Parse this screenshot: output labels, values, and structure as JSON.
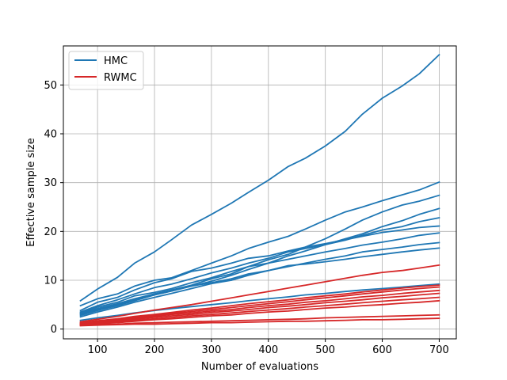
{
  "chart_data": {
    "type": "line",
    "title": "",
    "xlabel": "Number of evaluations",
    "ylabel": "Effective sample size",
    "xlim": [
      40,
      730
    ],
    "ylim": [
      -2,
      58
    ],
    "xticks": [
      100,
      200,
      300,
      400,
      500,
      600,
      700
    ],
    "yticks": [
      0,
      10,
      20,
      30,
      40,
      50
    ],
    "grid": true,
    "legend_position": "top-left",
    "legend": [
      {
        "label": "HMC",
        "color": "#1f77b4"
      },
      {
        "label": "RWMC",
        "color": "#d62728"
      }
    ],
    "x": [
      70,
      100,
      135,
      165,
      200,
      230,
      265,
      300,
      335,
      365,
      400,
      435,
      465,
      500,
      535,
      565,
      600,
      635,
      665,
      700
    ],
    "series": [
      {
        "group": "HMC",
        "color": "#1f77b4",
        "values": [
          5.8,
          8.2,
          10.6,
          13.5,
          15.8,
          18.3,
          21.3,
          23.5,
          25.8,
          28.0,
          30.5,
          33.3,
          35.0,
          37.5,
          40.5,
          44.0,
          47.3,
          49.8,
          52.3,
          56.2
        ]
      },
      {
        "group": "HMC",
        "color": "#1f77b4",
        "values": [
          4.8,
          6.2,
          7.2,
          8.8,
          10.0,
          10.5,
          12.0,
          13.5,
          15.0,
          16.5,
          17.8,
          19.0,
          20.5,
          22.3,
          24.0,
          25.0,
          26.3,
          27.5,
          28.5,
          30.1
        ]
      },
      {
        "group": "HMC",
        "color": "#1f77b4",
        "values": [
          3.2,
          4.2,
          5.2,
          6.2,
          7.2,
          8.0,
          9.0,
          10.3,
          11.3,
          12.8,
          14.2,
          15.3,
          16.8,
          18.5,
          20.5,
          22.3,
          24.0,
          25.4,
          26.2,
          27.4
        ]
      },
      {
        "group": "HMC",
        "color": "#1f77b4",
        "values": [
          3.0,
          4.0,
          5.0,
          6.0,
          7.0,
          7.8,
          8.8,
          9.8,
          11.0,
          12.2,
          13.5,
          15.0,
          16.0,
          17.3,
          18.5,
          19.5,
          21.0,
          22.2,
          23.5,
          24.7
        ]
      },
      {
        "group": "HMC",
        "color": "#1f77b4",
        "values": [
          3.5,
          4.8,
          6.0,
          7.2,
          8.5,
          9.2,
          10.3,
          11.5,
          12.5,
          13.5,
          14.5,
          15.8,
          16.5,
          17.3,
          18.2,
          19.2,
          20.3,
          21.0,
          22.0,
          22.8
        ]
      },
      {
        "group": "HMC",
        "color": "#1f77b4",
        "values": [
          3.8,
          5.5,
          6.5,
          8.0,
          9.5,
          10.3,
          11.8,
          12.5,
          13.5,
          14.5,
          15.0,
          16.0,
          16.8,
          17.5,
          18.3,
          19.0,
          19.8,
          20.3,
          20.8,
          21.1
        ]
      },
      {
        "group": "HMC",
        "color": "#1f77b4",
        "values": [
          3.3,
          4.5,
          5.5,
          6.8,
          7.5,
          8.3,
          9.5,
          10.5,
          11.8,
          12.8,
          13.5,
          14.3,
          15.0,
          15.8,
          16.5,
          17.2,
          17.8,
          18.5,
          19.2,
          19.7
        ]
      },
      {
        "group": "HMC",
        "color": "#1f77b4",
        "values": [
          2.5,
          3.5,
          4.5,
          5.5,
          6.5,
          7.3,
          8.3,
          9.3,
          10.0,
          11.0,
          12.0,
          12.8,
          13.5,
          14.3,
          15.0,
          15.8,
          16.3,
          16.8,
          17.3,
          17.7
        ]
      },
      {
        "group": "HMC",
        "color": "#1f77b4",
        "values": [
          2.8,
          3.8,
          4.8,
          5.8,
          7.0,
          7.8,
          8.8,
          9.5,
          10.3,
          11.3,
          12.0,
          13.0,
          13.3,
          13.8,
          14.3,
          14.8,
          15.3,
          15.8,
          16.2,
          16.6
        ]
      },
      {
        "group": "HMC",
        "color": "#1f77b4",
        "values": [
          1.8,
          2.3,
          2.8,
          3.3,
          3.8,
          4.2,
          4.6,
          5.0,
          5.4,
          5.8,
          6.2,
          6.6,
          7.0,
          7.3,
          7.7,
          8.0,
          8.3,
          8.6,
          8.9,
          9.2
        ]
      },
      {
        "group": "RWMC",
        "color": "#d62728",
        "values": [
          1.5,
          2.0,
          2.6,
          3.2,
          3.9,
          4.4,
          5.0,
          5.7,
          6.4,
          7.0,
          7.7,
          8.4,
          9.0,
          9.7,
          10.4,
          11.0,
          11.6,
          12.0,
          12.5,
          13.1
        ]
      },
      {
        "group": "RWMC",
        "color": "#d62728",
        "values": [
          1.3,
          1.7,
          2.1,
          2.6,
          3.0,
          3.4,
          3.9,
          4.3,
          4.8,
          5.2,
          5.6,
          6.0,
          6.4,
          6.8,
          7.2,
          7.6,
          8.0,
          8.4,
          8.7,
          9.0
        ]
      },
      {
        "group": "RWMC",
        "color": "#d62728",
        "values": [
          1.2,
          1.6,
          2.0,
          2.4,
          2.8,
          3.2,
          3.6,
          4.0,
          4.4,
          4.8,
          5.2,
          5.6,
          6.0,
          6.4,
          6.8,
          7.2,
          7.6,
          8.0,
          8.3,
          8.6
        ]
      },
      {
        "group": "RWMC",
        "color": "#d62728",
        "values": [
          1.1,
          1.5,
          1.9,
          2.2,
          2.6,
          3.0,
          3.3,
          3.7,
          4.0,
          4.4,
          4.8,
          5.1,
          5.5,
          5.8,
          6.2,
          6.6,
          6.9,
          7.3,
          7.6,
          7.9
        ]
      },
      {
        "group": "RWMC",
        "color": "#d62728",
        "values": [
          1.0,
          1.4,
          1.7,
          2.0,
          2.4,
          2.7,
          3.0,
          3.4,
          3.7,
          4.0,
          4.4,
          4.7,
          5.0,
          5.4,
          5.7,
          6.0,
          6.4,
          6.7,
          7.0,
          7.3
        ]
      },
      {
        "group": "RWMC",
        "color": "#d62728",
        "values": [
          0.9,
          1.2,
          1.5,
          1.8,
          2.1,
          2.4,
          2.7,
          3.0,
          3.3,
          3.6,
          3.9,
          4.2,
          4.5,
          4.8,
          5.1,
          5.4,
          5.7,
          6.0,
          6.2,
          6.5
        ]
      },
      {
        "group": "RWMC",
        "color": "#d62728",
        "values": [
          0.8,
          1.1,
          1.3,
          1.6,
          1.9,
          2.1,
          2.4,
          2.7,
          2.9,
          3.2,
          3.5,
          3.7,
          4.0,
          4.3,
          4.5,
          4.8,
          5.0,
          5.3,
          5.5,
          5.8
        ]
      },
      {
        "group": "RWMC",
        "color": "#d62728",
        "values": [
          0.8,
          0.9,
          1.0,
          1.2,
          1.3,
          1.4,
          1.5,
          1.6,
          1.7,
          1.8,
          1.9,
          2.0,
          2.1,
          2.3,
          2.4,
          2.5,
          2.6,
          2.7,
          2.8,
          2.9
        ]
      },
      {
        "group": "RWMC",
        "color": "#d62728",
        "values": [
          0.7,
          0.8,
          0.9,
          1.0,
          1.0,
          1.1,
          1.2,
          1.3,
          1.3,
          1.4,
          1.5,
          1.6,
          1.6,
          1.7,
          1.8,
          1.9,
          1.9,
          2.0,
          2.1,
          2.2
        ]
      }
    ]
  }
}
